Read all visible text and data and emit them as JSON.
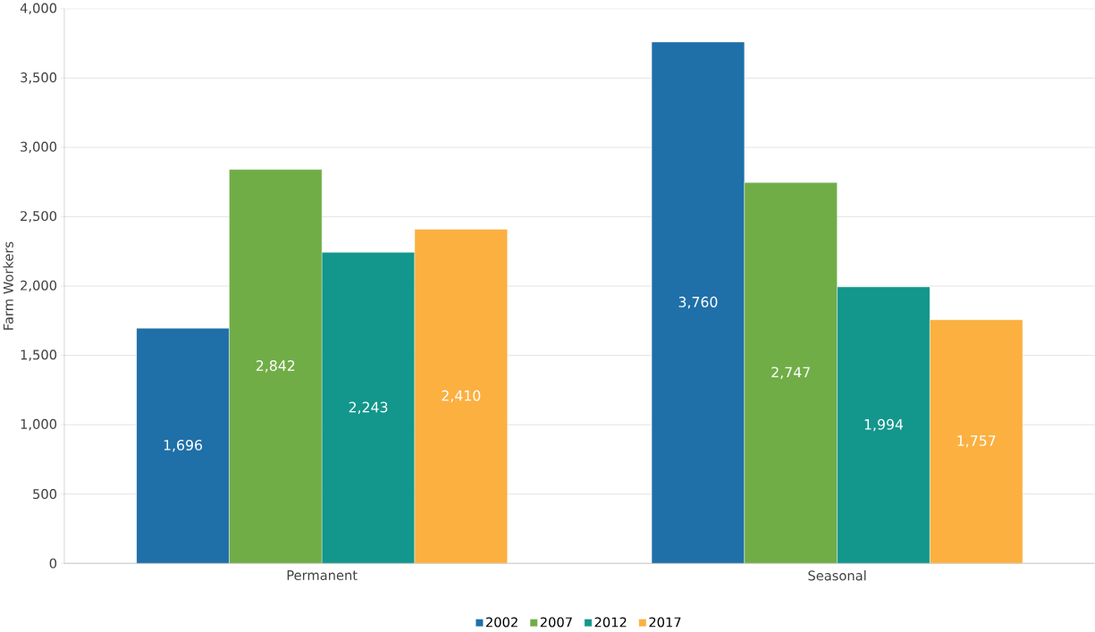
{
  "chart_data": {
    "type": "bar",
    "ylabel": "Farm Workers",
    "categories": [
      "Permanent",
      "Seasonal"
    ],
    "series": [
      {
        "name": "2002",
        "color": "#1f6fa8",
        "values": [
          1696,
          3760
        ],
        "value_labels": [
          "1,696",
          "3,760"
        ]
      },
      {
        "name": "2007",
        "color": "#70ad47",
        "values": [
          2842,
          2747
        ],
        "value_labels": [
          "2,842",
          "2,747"
        ]
      },
      {
        "name": "2012",
        "color": "#13968c",
        "values": [
          2243,
          1994
        ],
        "value_labels": [
          "2,243",
          "1,994"
        ]
      },
      {
        "name": "2017",
        "color": "#fbb040",
        "values": [
          2410,
          1757
        ],
        "value_labels": [
          "2,410",
          "1,757"
        ]
      }
    ],
    "ylim": [
      0,
      4000
    ],
    "yticks": [
      0,
      500,
      {
        "value": 1000,
        "label": "1,000"
      },
      {
        "value": 1500,
        "label": "1,500"
      },
      {
        "value": 2000,
        "label": "2,000"
      },
      {
        "value": 2500,
        "label": "2,500"
      },
      {
        "value": 3000,
        "label": "3,000"
      },
      {
        "value": 3500,
        "label": "3,500"
      },
      {
        "value": 4000,
        "label": "4,000"
      }
    ],
    "grid": "y",
    "legend": "bottom"
  }
}
